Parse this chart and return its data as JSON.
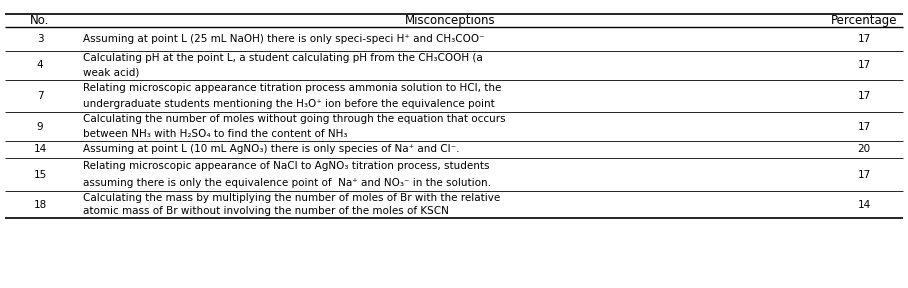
{
  "header": [
    "No.",
    "Misconceptions",
    "Percentage"
  ],
  "rows": [
    {
      "no": "3",
      "misconception": "Assuming at point L (25 mL NaOH) there is only speci-speci H⁺ and CH₃COO⁻",
      "percentage": "17",
      "n_lines": 1
    },
    {
      "no": "4",
      "misconception": "Calculating pH at the point L, a student calculating pH from the CH₃COOH (a\nweak acid)",
      "percentage": "17",
      "n_lines": 2
    },
    {
      "no": "7",
      "misconception": "Relating microscopic appearance titration process ammonia solution to HCl, the\nundergraduate students mentioning the H₃O⁺ ion before the equivalence point",
      "percentage": "17",
      "n_lines": 2
    },
    {
      "no": "9",
      "misconception": "Calculating the number of moles without going through the equation that occurs\nbetween NH₃ with H₂SO₄ to find the content of NH₃",
      "percentage": "17",
      "n_lines": 2
    },
    {
      "no": "14",
      "misconception": "Assuming at point L (10 mL AgNO₃) there is only species of Na⁺ and Cl⁻.",
      "percentage": "20",
      "n_lines": 1
    },
    {
      "no": "15",
      "misconception": "Relating microscopic appearance of NaCl to AgNO₃ titration process, students\nassuming there is only the equivalence point of  Na⁺ and NO₃⁻ in the solution.",
      "percentage": "17",
      "n_lines": 2
    },
    {
      "no": "18",
      "misconception": "Calculating the mass by multiplying the number of moles of Br with the relative\natomic mass of Br without involving the number of the moles of KSCN",
      "percentage": "14",
      "n_lines": 2
    }
  ],
  "fig_width": 9.08,
  "fig_height": 2.88,
  "dpi": 100,
  "font_size": 7.5,
  "header_font_size": 8.5,
  "background_color": "#ffffff",
  "line_color": "#000000",
  "text_color": "#000000"
}
